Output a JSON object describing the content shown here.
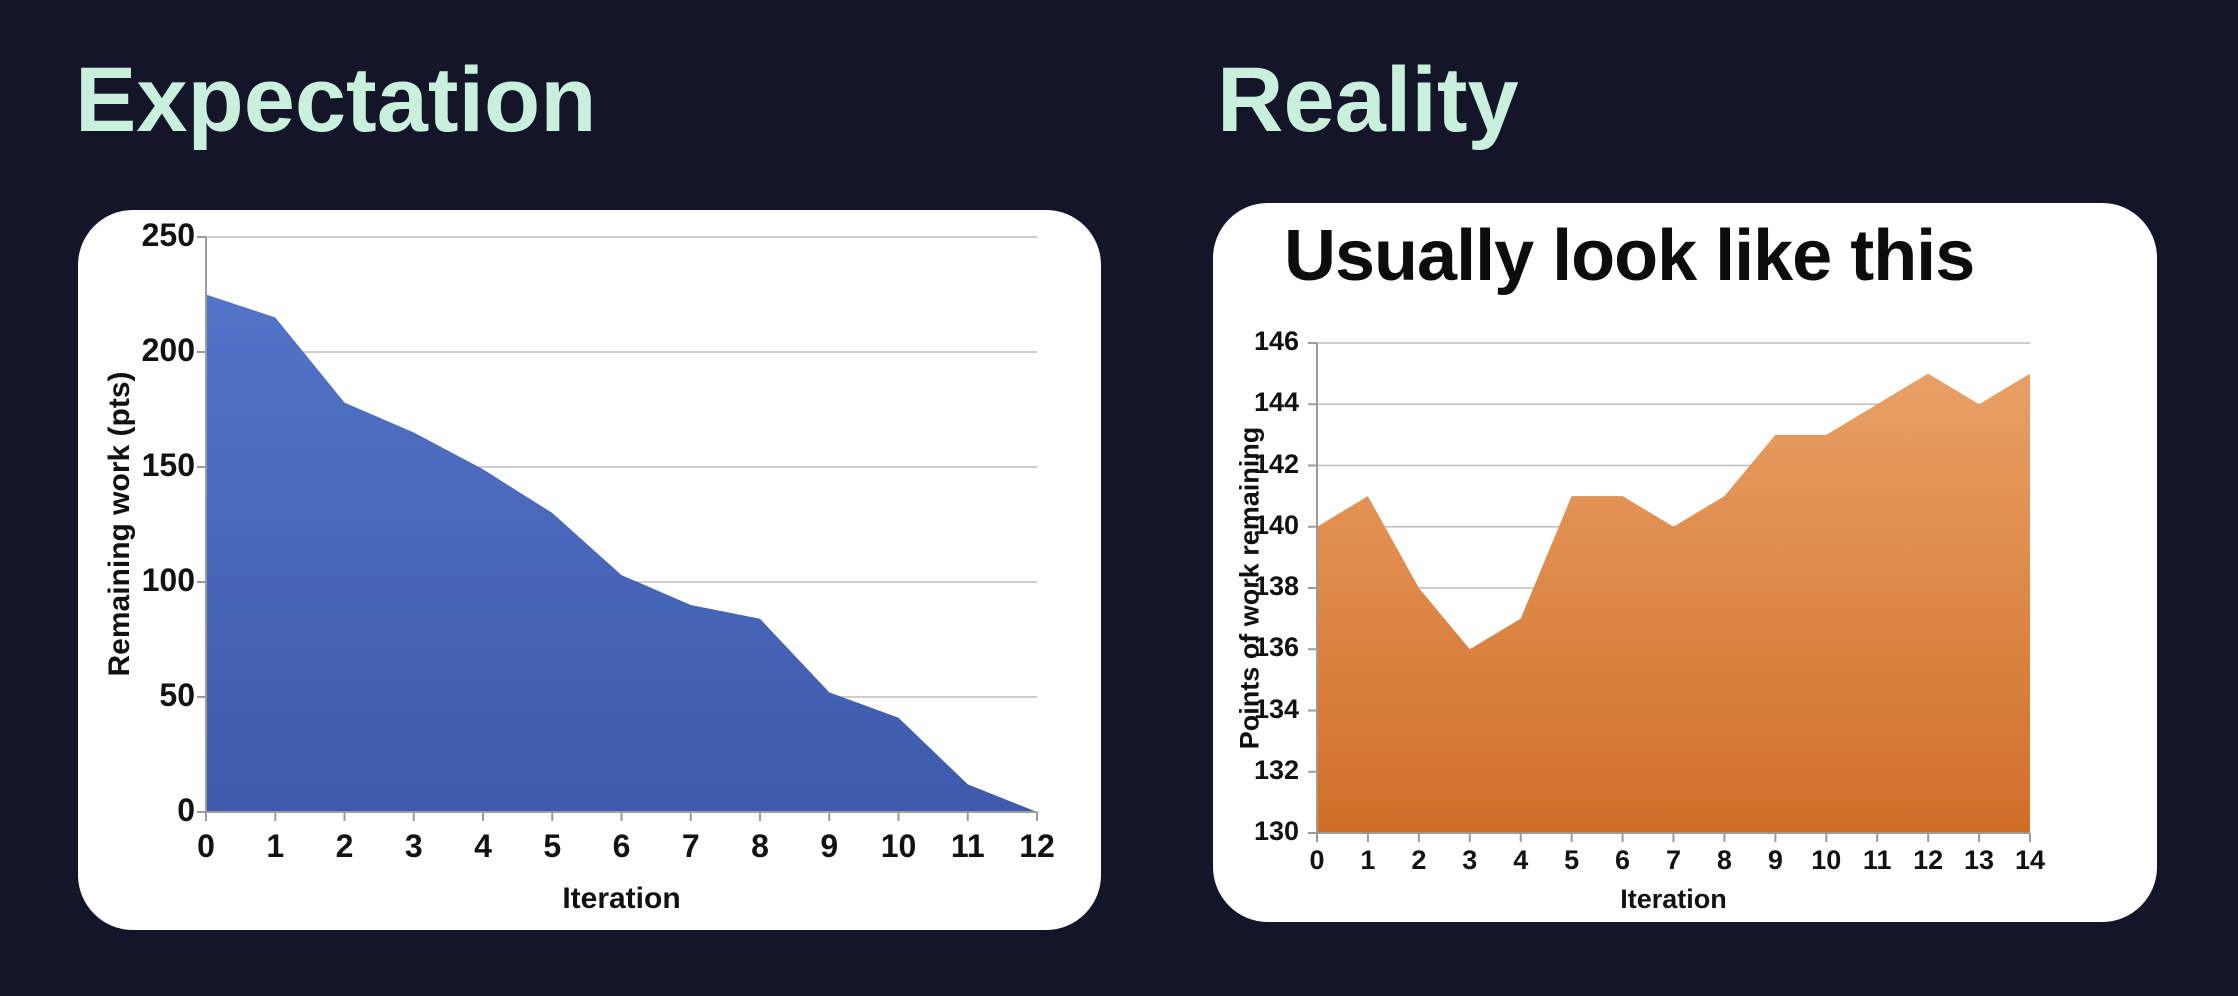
{
  "headers": {
    "expectation": "Expectation",
    "reality": "Reality"
  },
  "colors": {
    "background": "#151529",
    "accent_mint": "#c9efdd",
    "card": "#ffffff",
    "gridline": "#bdbdbd",
    "axis": "#9b9b9b",
    "blue_fill_top": "#5373c8",
    "blue_fill_bottom": "#3e5aab",
    "orange_fill_top": "#e9a066",
    "orange_fill_bottom": "#d06e27"
  },
  "chart_data": [
    {
      "type": "area",
      "panel": "Expectation",
      "title": "",
      "xlabel": "Iteration",
      "ylabel": "Remaining work (pts)",
      "x": [
        0,
        1,
        2,
        3,
        4,
        5,
        6,
        7,
        8,
        9,
        10,
        11,
        12
      ],
      "values": [
        225,
        215,
        178,
        165,
        149,
        130,
        103,
        90,
        84,
        52,
        41,
        12,
        0
      ],
      "xlim": [
        0,
        12
      ],
      "ylim": [
        0,
        250
      ],
      "xticks": [
        0,
        1,
        2,
        3,
        4,
        5,
        6,
        7,
        8,
        9,
        10,
        11,
        12
      ],
      "yticks": [
        250,
        200,
        150,
        100,
        50,
        0
      ],
      "grid": true,
      "legend": "none",
      "fill_top": "#5373c8",
      "fill_bottom": "#3e5aab"
    },
    {
      "type": "area",
      "panel": "Reality",
      "title": "Usually look like this",
      "xlabel": "Iteration",
      "ylabel": "Points of work remaining",
      "x": [
        0,
        1,
        2,
        3,
        4,
        5,
        6,
        7,
        8,
        9,
        10,
        11,
        12,
        13,
        14
      ],
      "values": [
        140,
        141,
        138,
        136,
        137,
        141,
        141,
        140,
        141,
        143,
        143,
        144,
        145,
        144,
        145
      ],
      "xlim": [
        0,
        14
      ],
      "ylim": [
        130,
        146
      ],
      "xticks": [
        0,
        1,
        2,
        3,
        4,
        5,
        6,
        7,
        8,
        9,
        10,
        11,
        12,
        13,
        14
      ],
      "yticks": [
        146,
        144,
        142,
        140,
        138,
        136,
        134,
        132,
        130
      ],
      "grid": true,
      "legend": "none",
      "fill_top": "#e9a066",
      "fill_bottom": "#d06e27"
    }
  ]
}
